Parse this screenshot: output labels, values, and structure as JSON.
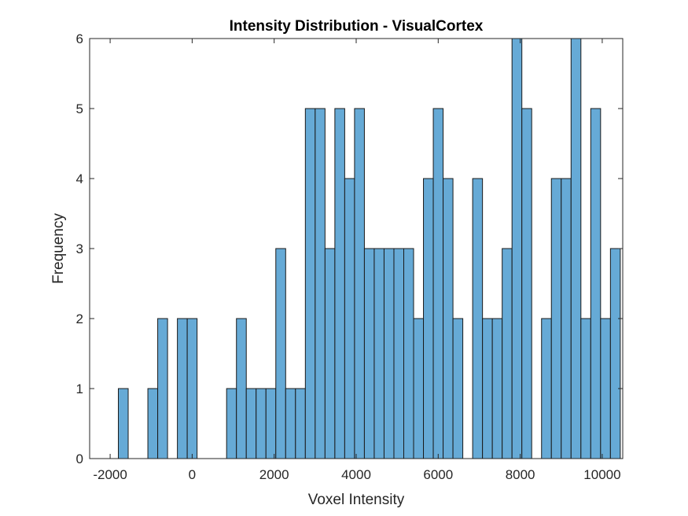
{
  "chart_data": {
    "type": "bar",
    "title": "Intensity Distribution - VisualCortex",
    "xlabel": "Voxel Intensity",
    "ylabel": "Frequency",
    "xlim": [
      -2500,
      10500
    ],
    "ylim": [
      0,
      6
    ],
    "xticks": [
      -2000,
      0,
      2000,
      4000,
      6000,
      8000,
      10000
    ],
    "yticks": [
      0,
      1,
      2,
      3,
      4,
      5,
      6
    ],
    "bin_start": -1800,
    "bin_width": 240,
    "values": [
      1,
      0,
      0,
      1,
      2,
      0,
      2,
      2,
      0,
      0,
      0,
      1,
      2,
      1,
      1,
      1,
      3,
      1,
      1,
      5,
      5,
      3,
      5,
      4,
      5,
      3,
      3,
      3,
      3,
      3,
      2,
      4,
      5,
      4,
      2,
      0,
      4,
      2,
      2,
      3,
      6,
      5,
      0,
      2,
      4,
      4,
      6,
      2,
      5,
      2,
      3
    ],
    "bar_color": "#66AAD6",
    "grid": false,
    "box": true
  }
}
